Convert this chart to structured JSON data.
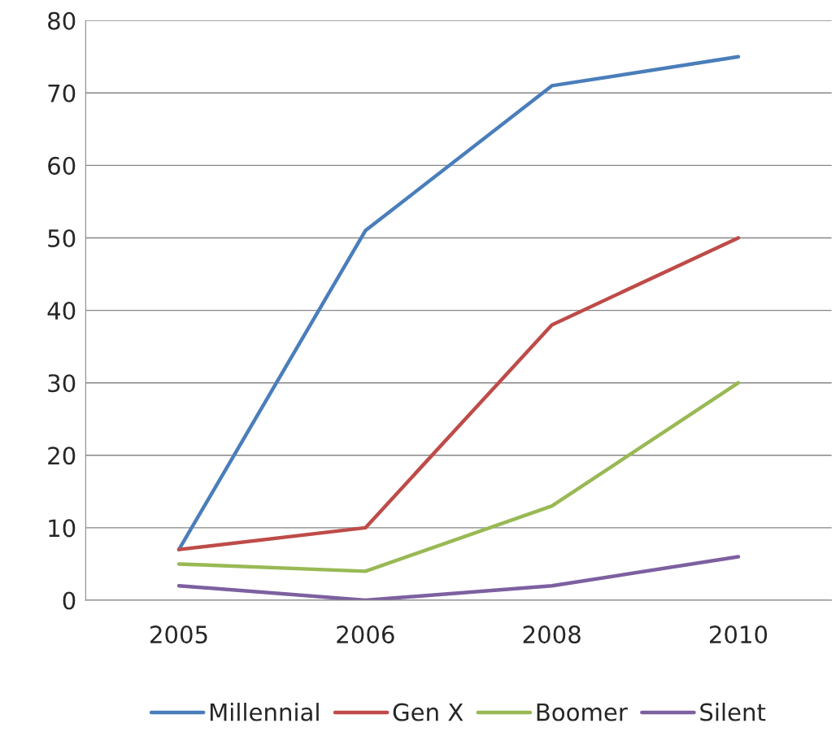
{
  "chart_data": {
    "type": "line",
    "categories": [
      "2005",
      "2006",
      "2008",
      "2010"
    ],
    "series": [
      {
        "name": "Millennial",
        "color": "#4a7ebb",
        "values": [
          7,
          51,
          71,
          75
        ]
      },
      {
        "name": "Gen X",
        "color": "#be4b48",
        "values": [
          7,
          10,
          38,
          50
        ]
      },
      {
        "name": "Boomer",
        "color": "#98b954",
        "values": [
          5,
          4,
          13,
          30
        ]
      },
      {
        "name": "Silent",
        "color": "#7d60a0",
        "values": [
          2,
          0,
          2,
          6
        ]
      }
    ],
    "ylim": [
      0,
      80
    ],
    "yticks": [
      0,
      10,
      20,
      30,
      40,
      50,
      60,
      70,
      80
    ],
    "grid": "y",
    "legend": "bottom",
    "marker": "none",
    "line_style": "solid"
  }
}
